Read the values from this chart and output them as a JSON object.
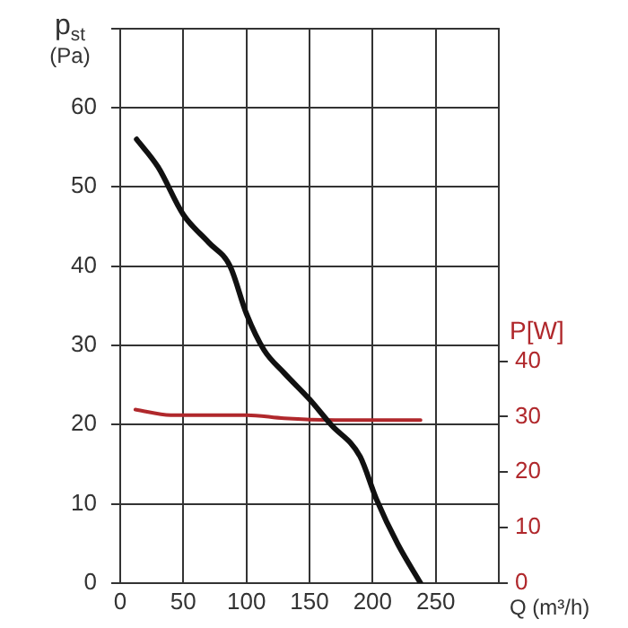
{
  "chart_data": {
    "type": "line",
    "xlabel": "Q (m³/h)",
    "ylabel": "p$_{st}$ (Pa)",
    "y2label": "P[W]",
    "xlim": [
      0,
      300
    ],
    "xticks": [
      0,
      50,
      100,
      150,
      200,
      250,
      {
        "value": 300,
        "label": null
      }
    ],
    "ylim": [
      0,
      70
    ],
    "yticks": [
      0,
      10,
      20,
      30,
      40,
      50,
      60,
      {
        "value": 70,
        "label": null
      }
    ],
    "y2lim": [
      0,
      100
    ],
    "y2ticks": [
      0,
      10,
      20,
      30,
      40
    ],
    "grid": true,
    "legend": false,
    "marker": "none",
    "line_style": "solid",
    "series": [
      {
        "color": "#111111",
        "x": [
          13,
          30,
          50,
          70,
          87,
          100,
          114,
          130,
          150,
          167,
          190,
          203,
          220,
          238
        ],
        "values": [
          56,
          52.5,
          46.5,
          43,
          40,
          34,
          29.4,
          26.5,
          23.2,
          20,
          16,
          10.6,
          4.9,
          0
        ]
      },
      {
        "color": "#b0282c",
        "axis": "y2",
        "x": [
          12,
          40,
          100,
          130,
          170,
          238
        ],
        "values": [
          31.3,
          30.3,
          30.3,
          29.7,
          29.4,
          29.4
        ]
      }
    ]
  }
}
